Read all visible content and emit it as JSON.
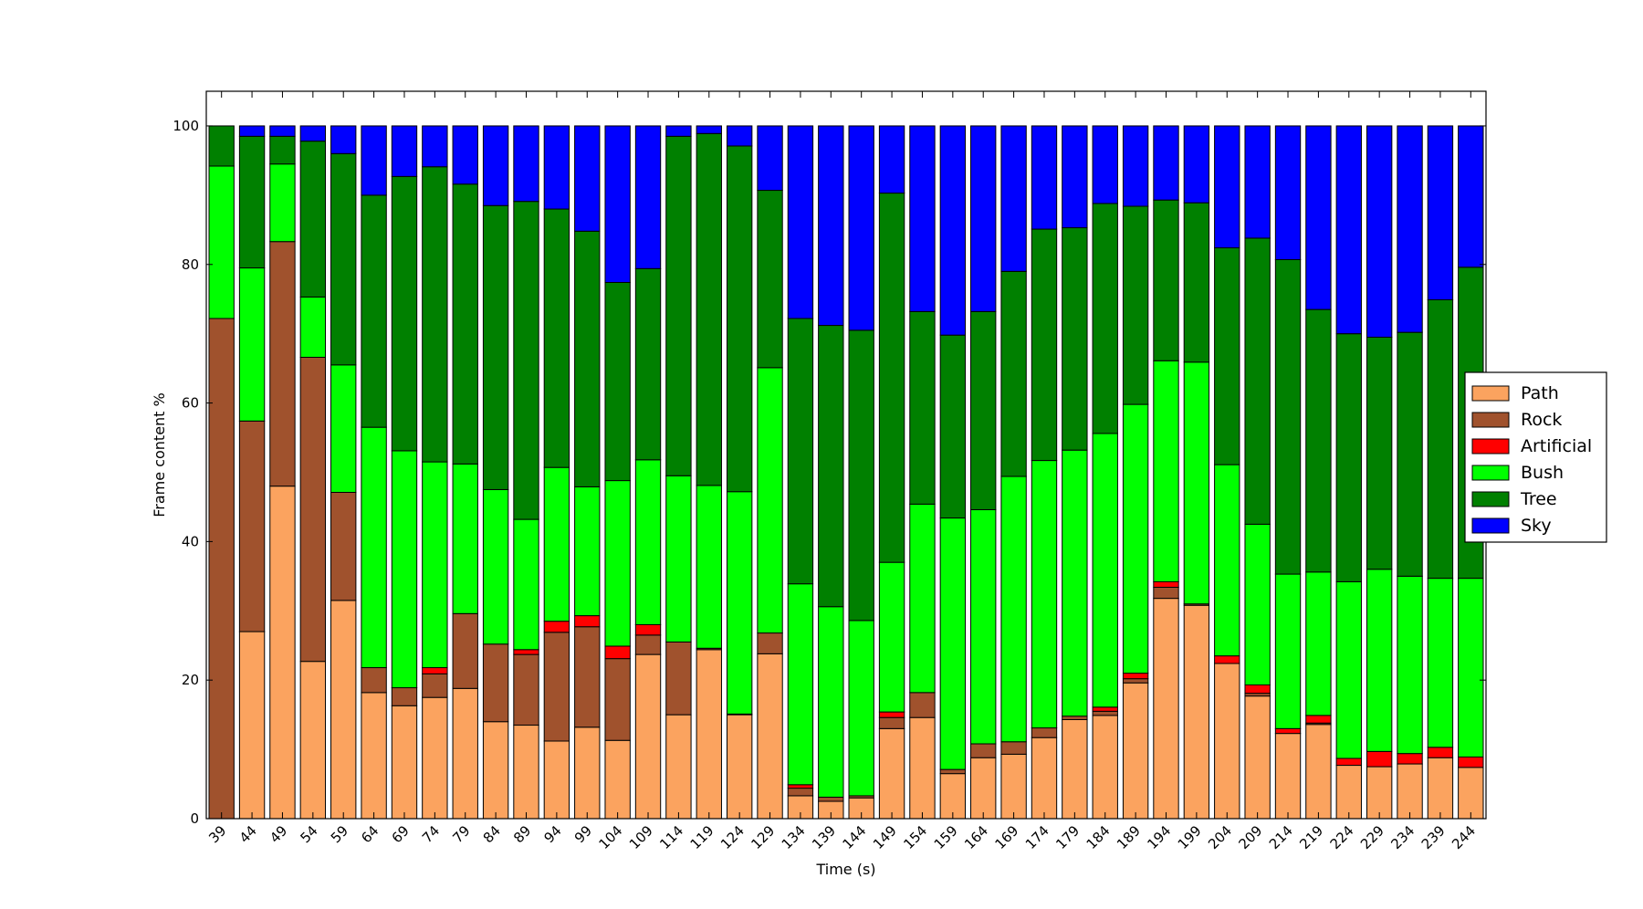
{
  "chart_data": {
    "type": "bar",
    "stacked": true,
    "xlabel": "Time (s)",
    "ylabel": "Frame content %",
    "ylim": [
      0,
      105
    ],
    "yticks": [
      0,
      20,
      40,
      60,
      80,
      100
    ],
    "grid": false,
    "legend_position": "right",
    "categories": [
      "39",
      "44",
      "49",
      "54",
      "59",
      "64",
      "69",
      "74",
      "79",
      "84",
      "89",
      "94",
      "99",
      "104",
      "109",
      "114",
      "119",
      "124",
      "129",
      "134",
      "139",
      "144",
      "149",
      "154",
      "159",
      "164",
      "169",
      "174",
      "179",
      "184",
      "189",
      "194",
      "199",
      "204",
      "209",
      "214",
      "219",
      "224",
      "229",
      "234",
      "239",
      "244"
    ],
    "series": [
      {
        "name": "Path",
        "color": "#FBA35F",
        "values": [
          0,
          27.0,
          48.0,
          22.7,
          31.5,
          18.2,
          16.3,
          17.5,
          18.8,
          14.0,
          13.5,
          11.2,
          13.2,
          11.3,
          23.7,
          15.0,
          24.4,
          15.0,
          23.8,
          3.3,
          2.5,
          3.0,
          13.0,
          14.6,
          6.5,
          8.8,
          9.3,
          11.7,
          14.3,
          14.9,
          19.6,
          31.8,
          30.8,
          22.4,
          17.7,
          12.3,
          13.6,
          7.7,
          7.5,
          7.9,
          8.8,
          7.4
        ]
      },
      {
        "name": "Rock",
        "color": "#A0522D",
        "values": [
          72.2,
          30.4,
          35.3,
          43.9,
          15.6,
          3.6,
          2.6,
          3.4,
          10.8,
          11.2,
          10.2,
          15.7,
          14.5,
          11.8,
          2.8,
          10.5,
          0.2,
          0.1,
          3.0,
          1.1,
          0.6,
          0.3,
          1.6,
          3.6,
          0.6,
          2.0,
          1.8,
          1.4,
          0.5,
          0.6,
          0.6,
          1.6,
          0.2,
          0,
          0.4,
          0,
          0.2,
          0,
          0,
          0,
          0,
          0
        ]
      },
      {
        "name": "Artificial",
        "color": "#FF0000",
        "values": [
          0,
          0,
          0,
          0,
          0,
          0,
          0,
          0.9,
          0,
          0,
          0.7,
          1.6,
          1.6,
          1.8,
          1.5,
          0,
          0,
          0,
          0,
          0.5,
          0,
          0,
          0.8,
          0,
          0,
          0,
          0,
          0,
          0,
          0.6,
          0.8,
          0.8,
          0,
          1.1,
          1.2,
          0.7,
          1.1,
          1.0,
          2.2,
          1.5,
          1.5,
          1.5
        ]
      },
      {
        "name": "Bush",
        "color": "#00FF00",
        "values": [
          22.0,
          22.1,
          11.2,
          8.7,
          18.4,
          34.7,
          34.2,
          29.7,
          21.6,
          22.3,
          18.8,
          22.2,
          18.6,
          23.9,
          23.8,
          24.0,
          23.5,
          32.1,
          38.3,
          29.0,
          27.5,
          25.3,
          21.6,
          27.2,
          36.3,
          33.8,
          38.3,
          38.6,
          38.4,
          39.5,
          38.8,
          31.9,
          34.9,
          27.6,
          23.2,
          22.3,
          20.7,
          25.5,
          26.3,
          25.6,
          24.4,
          25.8
        ]
      },
      {
        "name": "Tree",
        "color": "#008000",
        "values": [
          5.8,
          19.0,
          4.0,
          22.5,
          30.5,
          33.5,
          39.6,
          42.6,
          40.4,
          41.0,
          45.9,
          37.3,
          36.9,
          28.6,
          27.6,
          49.0,
          50.8,
          49.9,
          25.6,
          38.3,
          40.6,
          41.9,
          53.3,
          27.8,
          26.4,
          28.6,
          29.6,
          33.4,
          32.1,
          33.2,
          28.6,
          23.2,
          23.0,
          31.3,
          41.3,
          45.4,
          37.9,
          35.8,
          33.5,
          35.2,
          40.2,
          44.9
        ]
      },
      {
        "name": "Sky",
        "color": "#0000FF",
        "values": [
          0,
          1.5,
          1.5,
          2.2,
          4.0,
          10.0,
          7.3,
          5.9,
          8.4,
          11.5,
          10.9,
          12.0,
          15.2,
          22.6,
          20.6,
          1.5,
          1.1,
          2.9,
          9.3,
          27.8,
          28.8,
          29.5,
          9.7,
          26.8,
          30.2,
          26.8,
          21.0,
          14.9,
          14.7,
          11.2,
          11.6,
          10.7,
          11.1,
          17.6,
          16.2,
          19.3,
          26.5,
          30.0,
          30.5,
          29.8,
          25.1,
          20.4
        ]
      }
    ]
  }
}
